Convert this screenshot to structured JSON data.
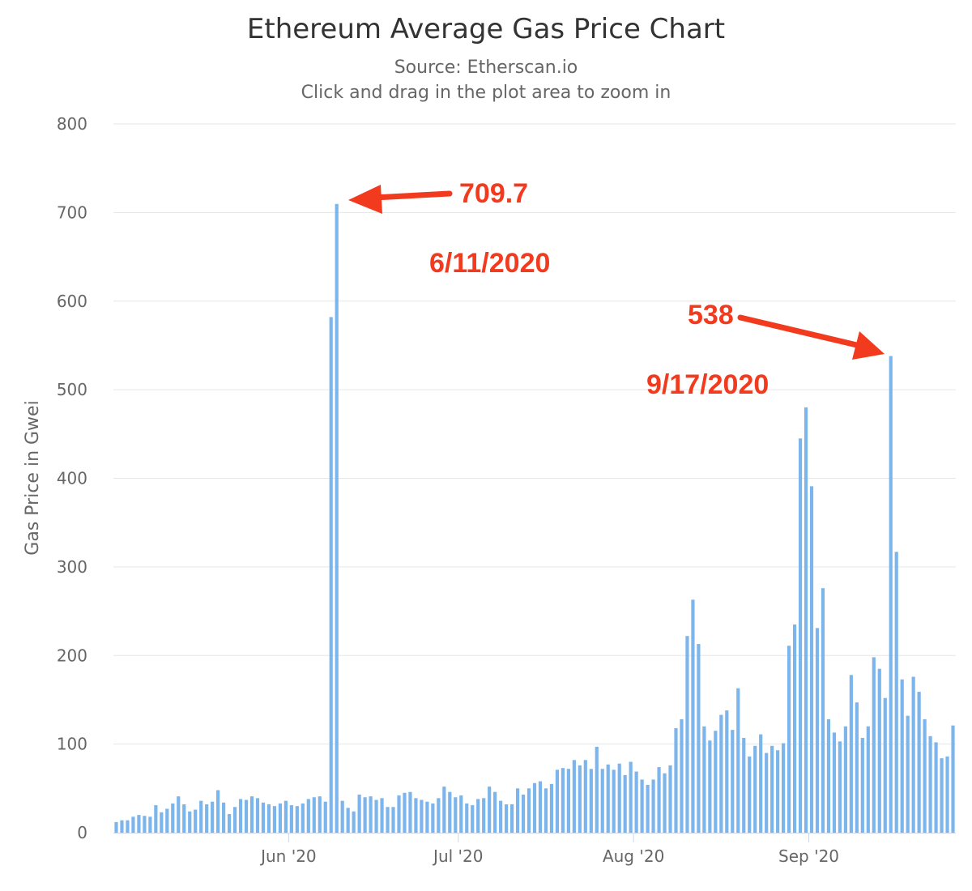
{
  "chart_data": {
    "type": "bar",
    "title": "Ethereum Average Gas Price Chart",
    "subtitle": "Source: Etherscan.io",
    "instruction": "Click and drag in the plot area to zoom in",
    "ylabel": "Gas Price in Gwei",
    "xlabel": "",
    "ylim": [
      0,
      800
    ],
    "yticks": [
      0,
      100,
      200,
      300,
      400,
      500,
      600,
      700,
      800
    ],
    "grid": true,
    "x_start_date": "2020-05-01",
    "x_ticks": [
      {
        "label": "Jun '20",
        "date": "2020-06-01"
      },
      {
        "label": "Jul '20",
        "date": "2020-07-01"
      },
      {
        "label": "Aug '20",
        "date": "2020-08-01"
      },
      {
        "label": "Sep '20",
        "date": "2020-09-01"
      }
    ],
    "bar_color": "#7cb5ec",
    "values": [
      12,
      14,
      14,
      18,
      20,
      19,
      18,
      31,
      23,
      27,
      33,
      41,
      32,
      24,
      26,
      36,
      32,
      35,
      48,
      34,
      21,
      29,
      38,
      37,
      41,
      39,
      34,
      32,
      30,
      33,
      36,
      31,
      30,
      33,
      38,
      40,
      41,
      35,
      582,
      709.7,
      36,
      28,
      24,
      43,
      40,
      41,
      37,
      39,
      29,
      29,
      42,
      45,
      46,
      39,
      37,
      35,
      33,
      39,
      52,
      46,
      40,
      42,
      33,
      31,
      38,
      39,
      52,
      46,
      36,
      32,
      32,
      50,
      43,
      50,
      56,
      58,
      50,
      55,
      71,
      73,
      72,
      82,
      76,
      82,
      72,
      97,
      72,
      77,
      71,
      78,
      65,
      80,
      69,
      60,
      54,
      60,
      74,
      67,
      76,
      118,
      128,
      222,
      263,
      213,
      120,
      104,
      115,
      133,
      138,
      116,
      163,
      107,
      86,
      98,
      111,
      90,
      98,
      93,
      101,
      211,
      235,
      445,
      480,
      391,
      231,
      276,
      128,
      113,
      103,
      120,
      178,
      147,
      107,
      120,
      198,
      185,
      152,
      538,
      317,
      173,
      132,
      176,
      159,
      128,
      109,
      102,
      84,
      86,
      121
    ],
    "annotations": [
      {
        "value_label": "709.7",
        "date_label": "6/11/2020",
        "value": 709.7
      },
      {
        "value_label": "538",
        "date_label": "9/17/2020",
        "value": 538
      }
    ],
    "annotation_color": "#f13a1e"
  }
}
